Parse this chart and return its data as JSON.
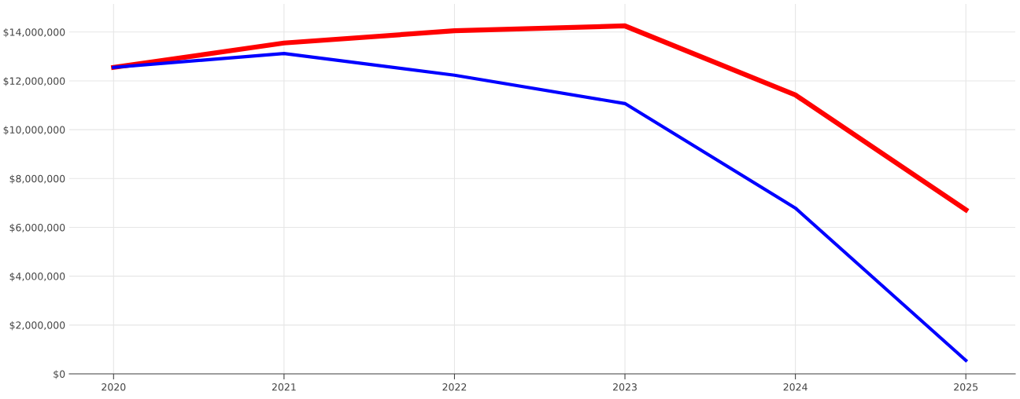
{
  "chart_data": {
    "type": "line",
    "categories": [
      "2020",
      "2021",
      "2022",
      "2023",
      "2024",
      "2025"
    ],
    "series": [
      {
        "color": "#ff0000",
        "values": [
          12550000,
          13550000,
          14050000,
          14250000,
          11420000,
          6720000
        ]
      },
      {
        "color": "#0000ff",
        "values": [
          12550000,
          13120000,
          12230000,
          11070000,
          6790000,
          550000
        ]
      }
    ],
    "ylim": [
      0,
      15150000
    ],
    "yticks": [
      {
        "value": 0,
        "label": "$0"
      },
      {
        "value": 2000000,
        "label": "$2,000,000"
      },
      {
        "value": 4000000,
        "label": "$4,000,000"
      },
      {
        "value": 6000000,
        "label": "$6,000,000"
      },
      {
        "value": 8000000,
        "label": "$8,000,000"
      },
      {
        "value": 10000000,
        "label": "$10,000,000"
      },
      {
        "value": 12000000,
        "label": "$12,000,000"
      },
      {
        "value": 14000000,
        "label": "$14,000,000"
      }
    ],
    "grid": true,
    "marker": "none",
    "line_style": "solid"
  }
}
